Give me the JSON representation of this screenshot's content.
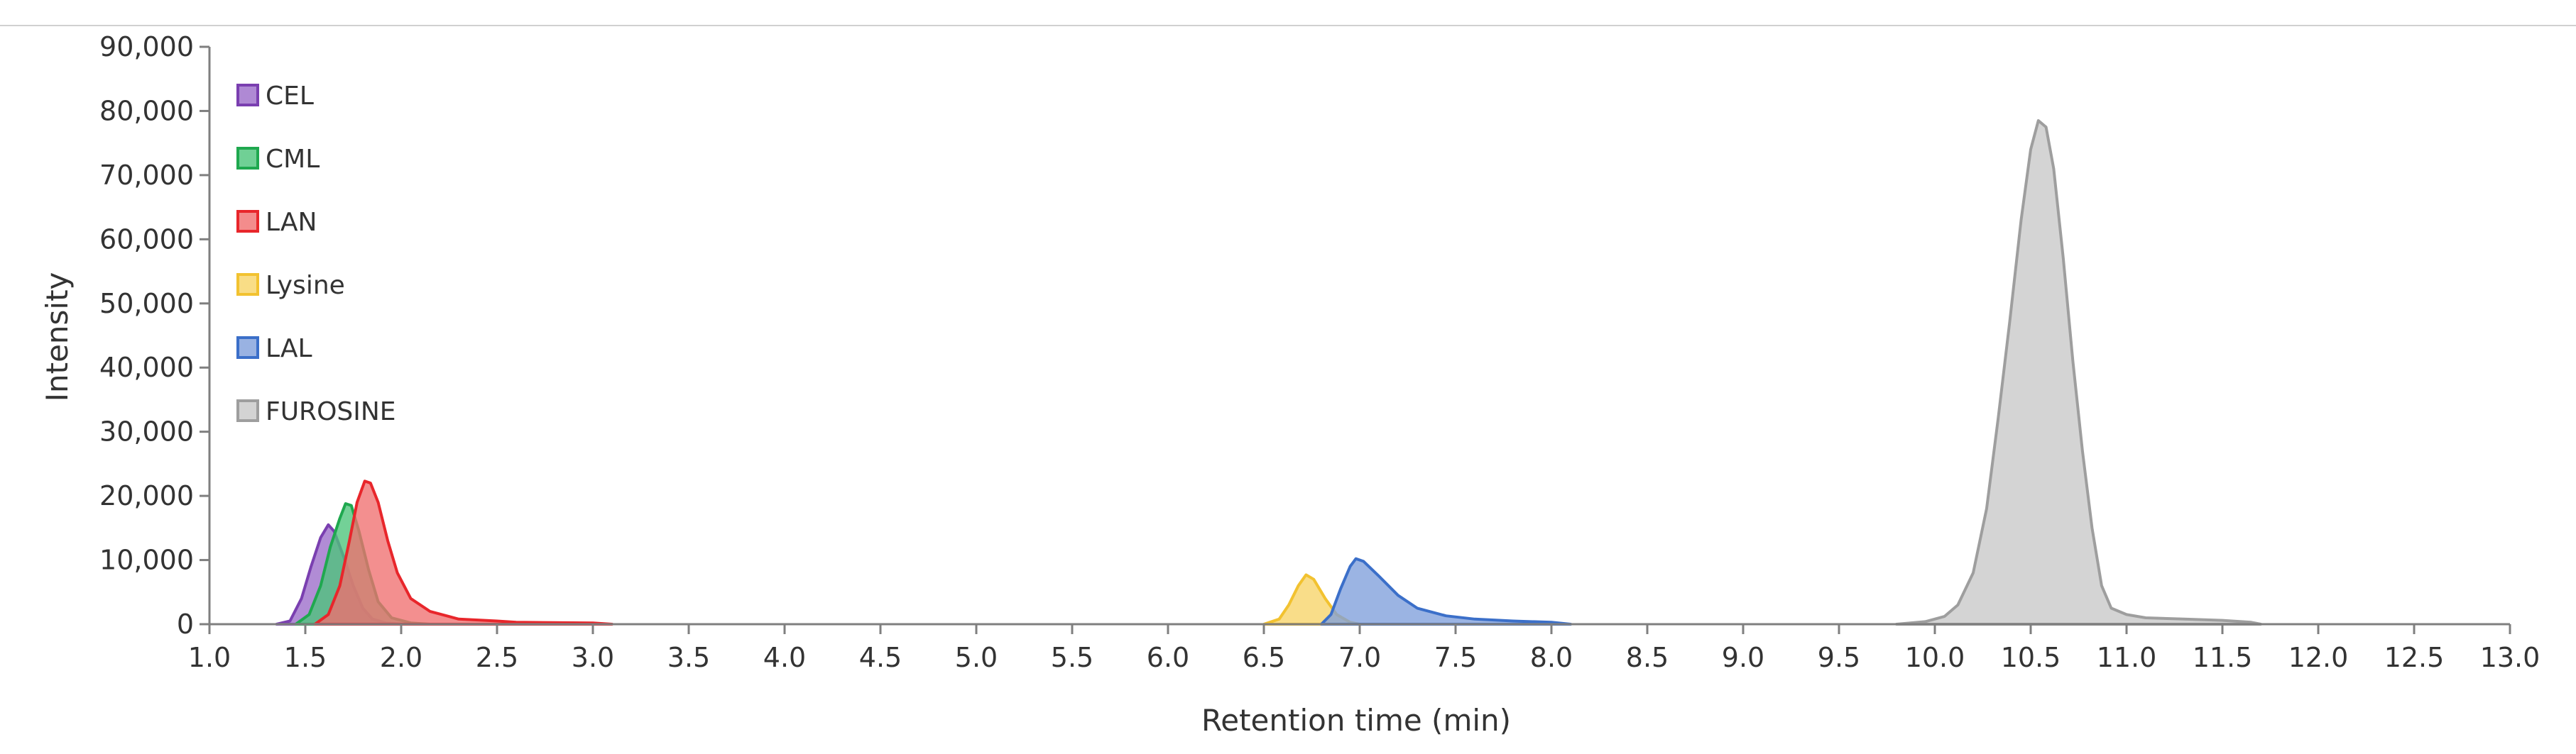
{
  "chart_data": {
    "type": "area",
    "title": "",
    "xlabel": "Retention time (min)",
    "ylabel": "Intensity",
    "xlim": [
      1.0,
      13.0
    ],
    "ylim": [
      0,
      90000
    ],
    "x_ticks": [
      "1.0",
      "1.5",
      "2.0",
      "2.5",
      "3.0",
      "3.5",
      "4.0",
      "4.5",
      "5.0",
      "5.5",
      "6.0",
      "6.5",
      "7.0",
      "7.5",
      "8.0",
      "8.5",
      "9.0",
      "9.5",
      "10.0",
      "10.5",
      "11.0",
      "11.5",
      "12.0",
      "12.5",
      "13.0"
    ],
    "y_ticks": [
      "0",
      "10,000",
      "20,000",
      "30,000",
      "40,000",
      "50,000",
      "60,000",
      "70,000",
      "80,000",
      "90,000"
    ],
    "legend_position": "top-left",
    "grid": false,
    "series": [
      {
        "name": "CEL",
        "color": "#7a3fb0",
        "fill": "#9b6cc9",
        "points": [
          [
            1.35,
            0
          ],
          [
            1.42,
            500
          ],
          [
            1.48,
            4000
          ],
          [
            1.53,
            9000
          ],
          [
            1.58,
            13500
          ],
          [
            1.62,
            15500
          ],
          [
            1.65,
            14500
          ],
          [
            1.7,
            10500
          ],
          [
            1.75,
            6000
          ],
          [
            1.8,
            2500
          ],
          [
            1.85,
            800
          ],
          [
            1.92,
            200
          ],
          [
            2.0,
            0
          ]
        ]
      },
      {
        "name": "CML",
        "color": "#1fa84f",
        "fill": "#4cc47a",
        "points": [
          [
            1.45,
            0
          ],
          [
            1.52,
            1500
          ],
          [
            1.58,
            6000
          ],
          [
            1.63,
            12000
          ],
          [
            1.68,
            16500
          ],
          [
            1.71,
            18800
          ],
          [
            1.74,
            18500
          ],
          [
            1.78,
            14500
          ],
          [
            1.83,
            8500
          ],
          [
            1.88,
            3500
          ],
          [
            1.95,
            1000
          ],
          [
            2.05,
            200
          ],
          [
            2.15,
            0
          ]
        ]
      },
      {
        "name": "LAN",
        "color": "#e8262b",
        "fill": "#f06f6f",
        "points": [
          [
            1.55,
            0
          ],
          [
            1.62,
            1500
          ],
          [
            1.68,
            6000
          ],
          [
            1.73,
            13000
          ],
          [
            1.77,
            19000
          ],
          [
            1.81,
            22300
          ],
          [
            1.84,
            22000
          ],
          [
            1.88,
            19000
          ],
          [
            1.93,
            13000
          ],
          [
            1.98,
            8000
          ],
          [
            2.05,
            4000
          ],
          [
            2.15,
            2000
          ],
          [
            2.3,
            800
          ],
          [
            2.5,
            500
          ],
          [
            2.6,
            300
          ],
          [
            3.0,
            200
          ],
          [
            3.1,
            0
          ]
        ]
      },
      {
        "name": "Lysine",
        "color": "#f2c230",
        "fill": "#f7d468",
        "points": [
          [
            6.5,
            0
          ],
          [
            6.58,
            800
          ],
          [
            6.63,
            3000
          ],
          [
            6.68,
            6000
          ],
          [
            6.72,
            7700
          ],
          [
            6.76,
            7000
          ],
          [
            6.82,
            4000
          ],
          [
            6.88,
            1500
          ],
          [
            6.95,
            300
          ],
          [
            7.0,
            0
          ]
        ]
      },
      {
        "name": "LAL",
        "color": "#3b6fc9",
        "fill": "#7f9fdb",
        "points": [
          [
            6.8,
            0
          ],
          [
            6.85,
            1500
          ],
          [
            6.9,
            5500
          ],
          [
            6.95,
            9000
          ],
          [
            6.98,
            10200
          ],
          [
            7.02,
            9800
          ],
          [
            7.1,
            7500
          ],
          [
            7.2,
            4500
          ],
          [
            7.3,
            2500
          ],
          [
            7.45,
            1300
          ],
          [
            7.6,
            800
          ],
          [
            7.8,
            500
          ],
          [
            8.0,
            300
          ],
          [
            8.1,
            0
          ]
        ]
      },
      {
        "name": "FUROSINE",
        "color": "#9e9e9e",
        "fill": "#c8c8c8",
        "points": [
          [
            9.8,
            0
          ],
          [
            9.95,
            400
          ],
          [
            10.05,
            1200
          ],
          [
            10.12,
            3000
          ],
          [
            10.2,
            8000
          ],
          [
            10.27,
            18000
          ],
          [
            10.33,
            32000
          ],
          [
            10.39,
            47000
          ],
          [
            10.45,
            63000
          ],
          [
            10.5,
            74000
          ],
          [
            10.54,
            78500
          ],
          [
            10.58,
            77500
          ],
          [
            10.62,
            71000
          ],
          [
            10.67,
            57000
          ],
          [
            10.72,
            41000
          ],
          [
            10.77,
            27000
          ],
          [
            10.82,
            15000
          ],
          [
            10.87,
            6000
          ],
          [
            10.92,
            2500
          ],
          [
            11.0,
            1500
          ],
          [
            11.1,
            1000
          ],
          [
            11.3,
            800
          ],
          [
            11.5,
            600
          ],
          [
            11.65,
            300
          ],
          [
            11.7,
            0
          ]
        ]
      }
    ]
  }
}
